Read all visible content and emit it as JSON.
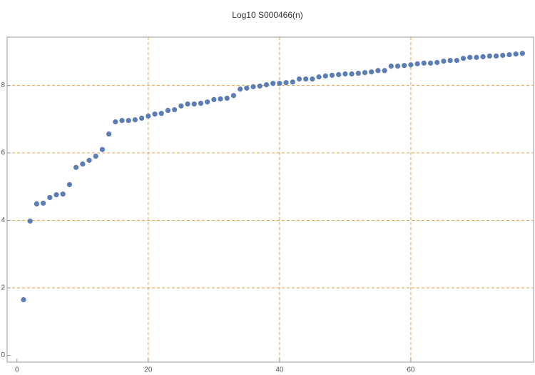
{
  "chart_data": {
    "type": "scatter",
    "title": "Log10 S000466(n)",
    "x": [
      1,
      2,
      3,
      4,
      5,
      6,
      7,
      8,
      9,
      10,
      11,
      12,
      13,
      14,
      15,
      16,
      17,
      18,
      19,
      20,
      21,
      22,
      23,
      24,
      25,
      26,
      27,
      28,
      29,
      30,
      31,
      32,
      33,
      34,
      35,
      36,
      37,
      38,
      39,
      40,
      41,
      42,
      43,
      44,
      45,
      46,
      47,
      48,
      49,
      50,
      51,
      52,
      53,
      54,
      55,
      56,
      57,
      58,
      59,
      60,
      61,
      62,
      63,
      64,
      65,
      66,
      67,
      68,
      69,
      70,
      71,
      72,
      73,
      74,
      75,
      76,
      77
    ],
    "series": [
      {
        "color": "#5b7db5",
        "values": [
          1.65,
          3.98,
          4.49,
          4.51,
          4.68,
          4.76,
          4.78,
          5.06,
          5.57,
          5.67,
          5.78,
          5.9,
          6.1,
          6.56,
          6.92,
          6.96,
          6.96,
          6.98,
          7.03,
          7.09,
          7.15,
          7.17,
          7.26,
          7.28,
          7.39,
          7.45,
          7.45,
          7.47,
          7.51,
          7.58,
          7.6,
          7.62,
          7.7,
          7.89,
          7.92,
          7.96,
          7.98,
          8.02,
          8.06,
          8.06,
          8.08,
          8.1,
          8.19,
          8.19,
          8.19,
          8.25,
          8.28,
          8.3,
          8.32,
          8.34,
          8.34,
          8.36,
          8.38,
          8.4,
          8.44,
          8.44,
          8.57,
          8.57,
          8.59,
          8.61,
          8.64,
          8.66,
          8.66,
          8.68,
          8.72,
          8.74,
          8.74,
          8.8,
          8.83,
          8.83,
          8.85,
          8.87,
          8.87,
          8.89,
          8.91,
          8.93,
          8.95
        ]
      }
    ],
    "xlim": [
      -1.5,
      78.7
    ],
    "ylim": [
      -0.2,
      9.43
    ],
    "xticks": [
      0,
      20,
      40,
      60
    ],
    "yticks": [
      0,
      2,
      4,
      6,
      8
    ],
    "grid_x": [
      20,
      40,
      60
    ],
    "grid_y": [
      2,
      4,
      6,
      8
    ],
    "grid_color": "#e8a040"
  }
}
